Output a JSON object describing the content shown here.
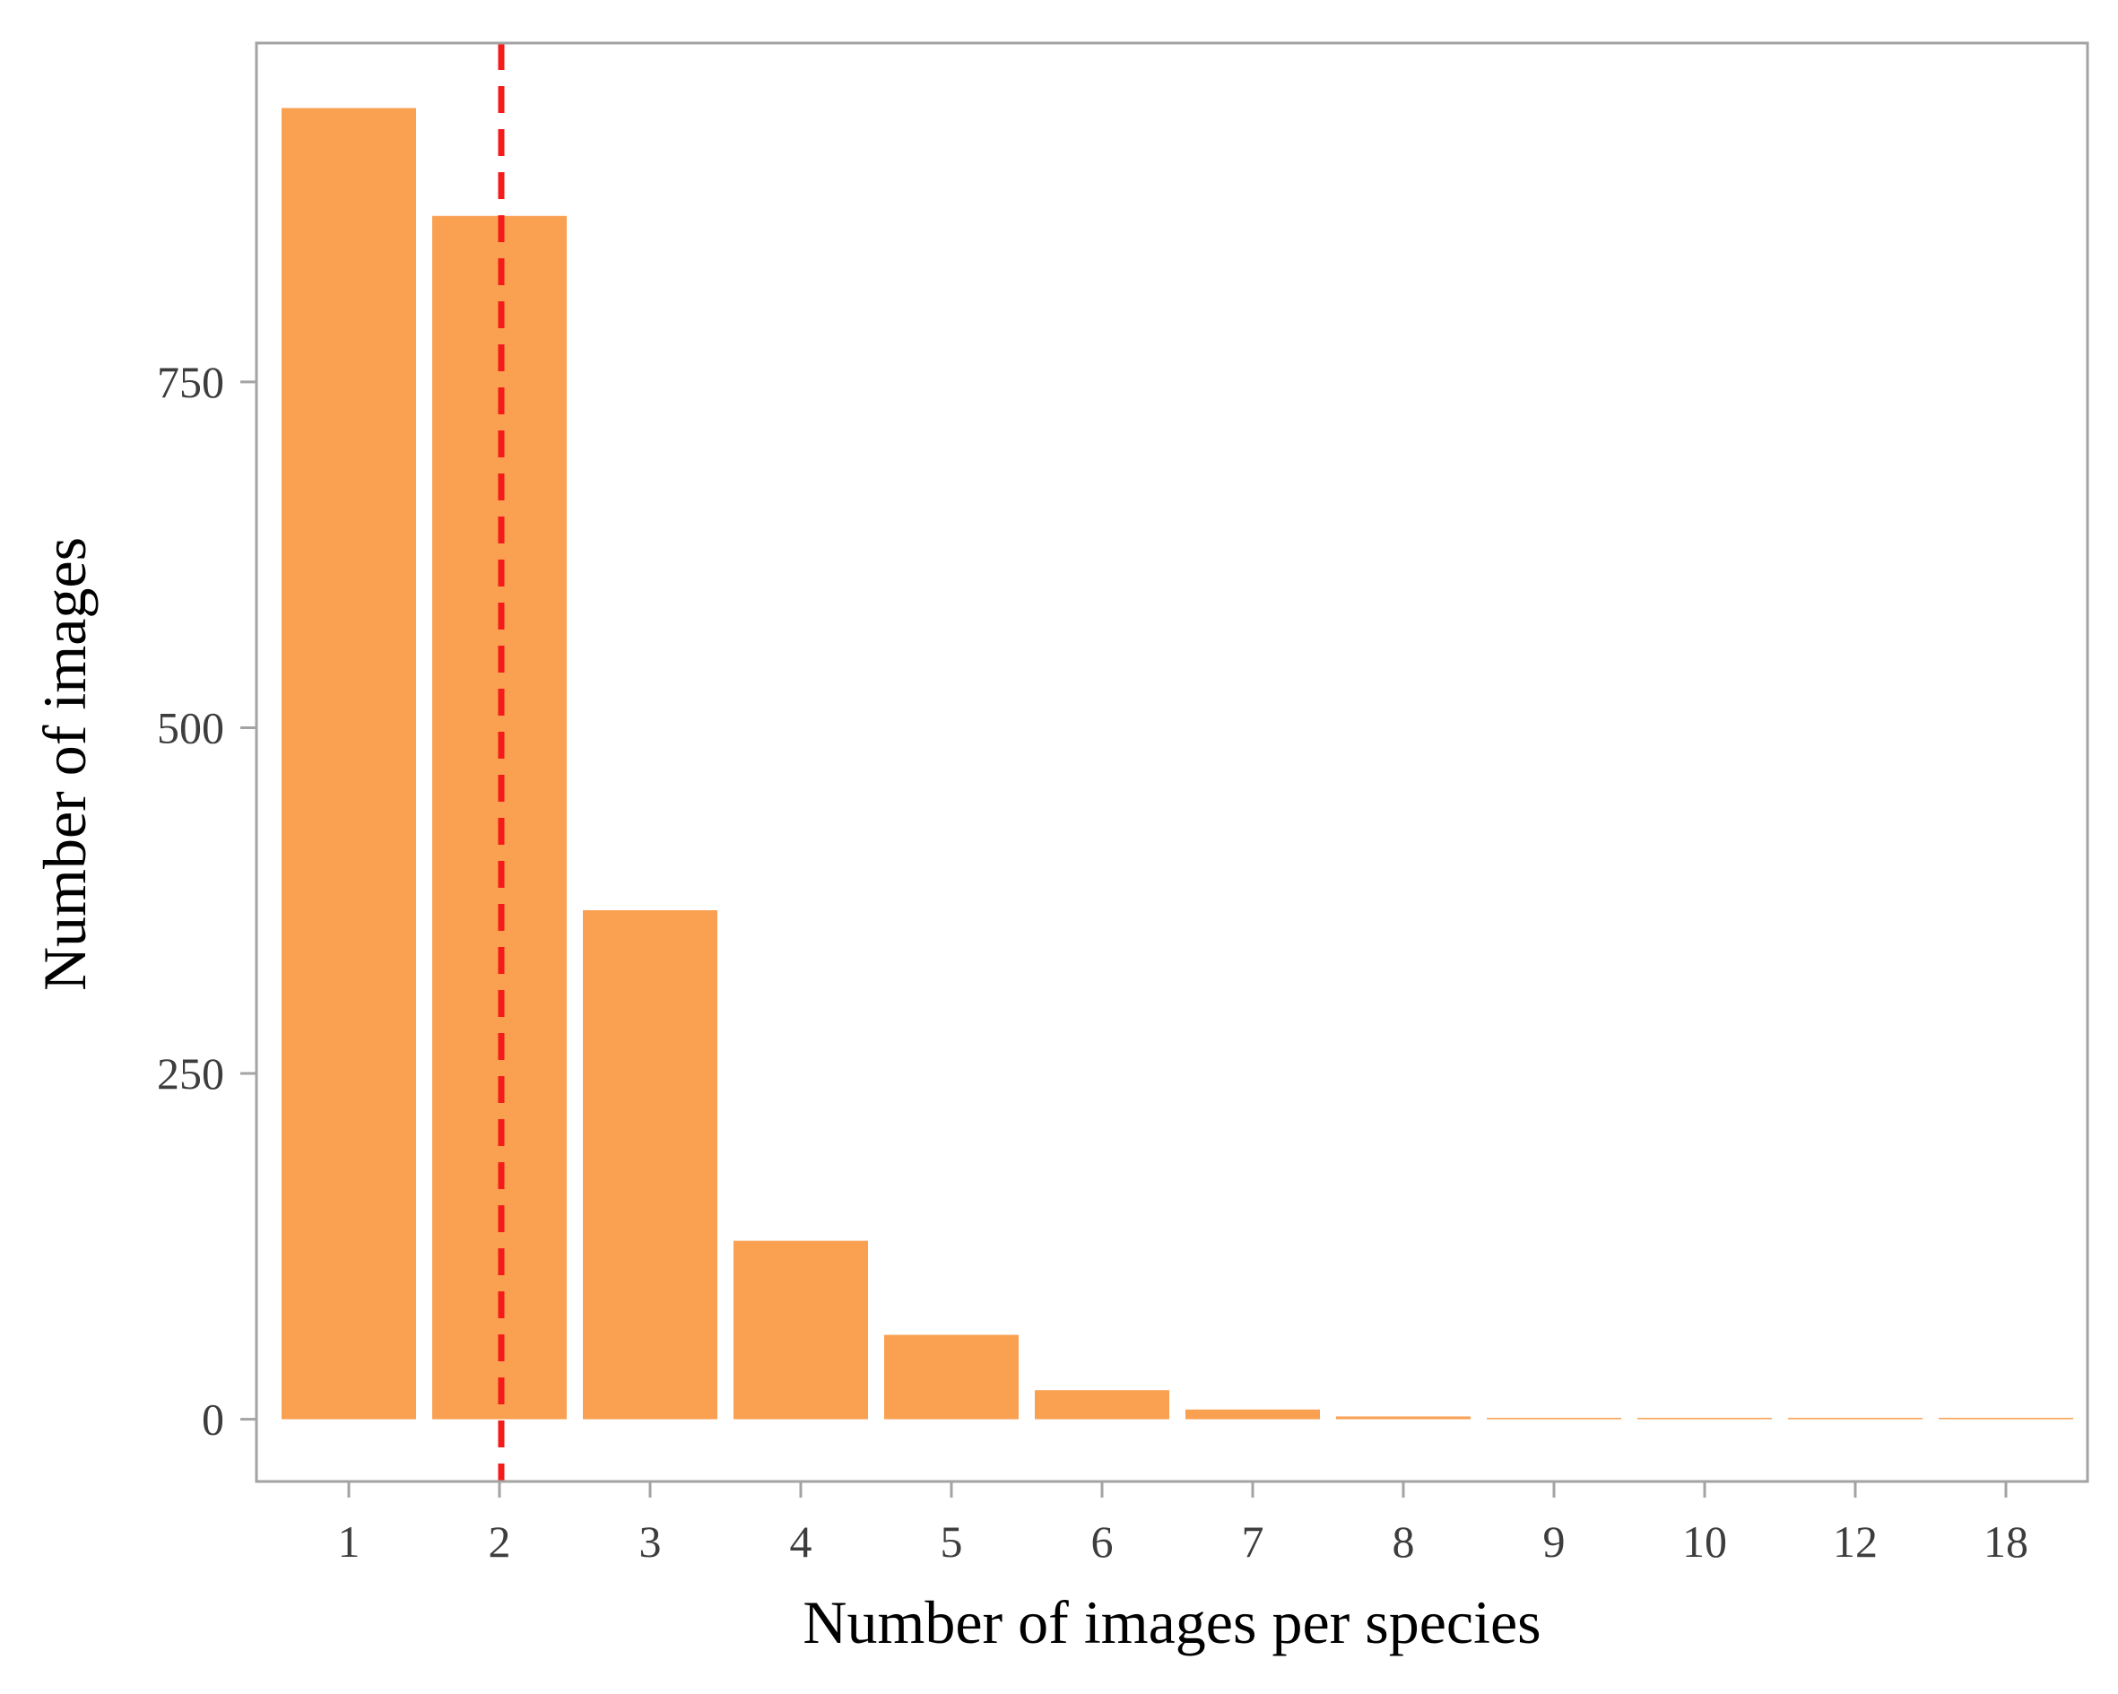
{
  "chart_data": {
    "type": "bar",
    "categories": [
      "1",
      "2",
      "3",
      "4",
      "5",
      "6",
      "7",
      "8",
      "9",
      "10",
      "12",
      "18"
    ],
    "values": [
      948,
      870,
      368,
      129,
      61,
      21,
      7,
      2,
      1,
      1,
      1,
      1
    ],
    "title": "",
    "xlabel": "Number of images per species",
    "ylabel": "Number of images",
    "ylim": [
      -45,
      995
    ],
    "yticks": [
      0,
      250,
      500,
      750
    ],
    "ytick_labels": [
      "0",
      "250",
      "500",
      "750"
    ],
    "reference_line": {
      "x_category": "2",
      "style": "dashed"
    },
    "grid": false,
    "legend": "none",
    "colors": {
      "bar": "#f9a051",
      "reference_line": "#f51b1b",
      "frame": "#a3a3a3",
      "tick_text": "#3d3d3d",
      "title_text": "#000000"
    }
  }
}
